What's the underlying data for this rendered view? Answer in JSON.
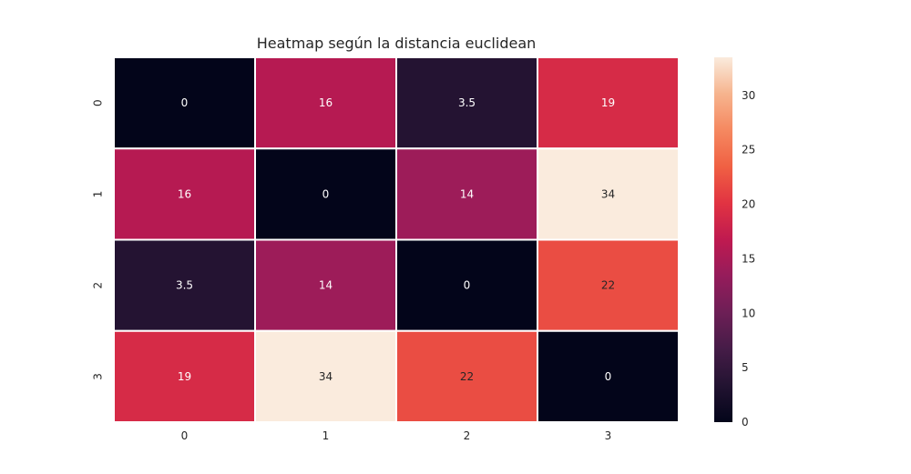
{
  "chart_data": {
    "type": "heatmap",
    "title": "Heatmap según la distancia euclidean",
    "xlabel": "",
    "ylabel": "",
    "x_categories": [
      "0",
      "1",
      "2",
      "3"
    ],
    "y_categories": [
      "0",
      "1",
      "2",
      "3"
    ],
    "values": [
      [
        0,
        16,
        3.5,
        19
      ],
      [
        16,
        0,
        14,
        34
      ],
      [
        3.5,
        14,
        0,
        22
      ],
      [
        19,
        34,
        22,
        0
      ]
    ],
    "annotations": [
      [
        "0",
        "16",
        "3.5",
        "19"
      ],
      [
        "16",
        "0",
        "14",
        "34"
      ],
      [
        "3.5",
        "14",
        "0",
        "22"
      ],
      [
        "19",
        "34",
        "22",
        "0"
      ]
    ],
    "colorbar": {
      "vmin": 0,
      "vmax": 33.5,
      "ticks": [
        0,
        5,
        10,
        15,
        20,
        25,
        30
      ],
      "colormap": "rocket"
    },
    "grid": false
  }
}
